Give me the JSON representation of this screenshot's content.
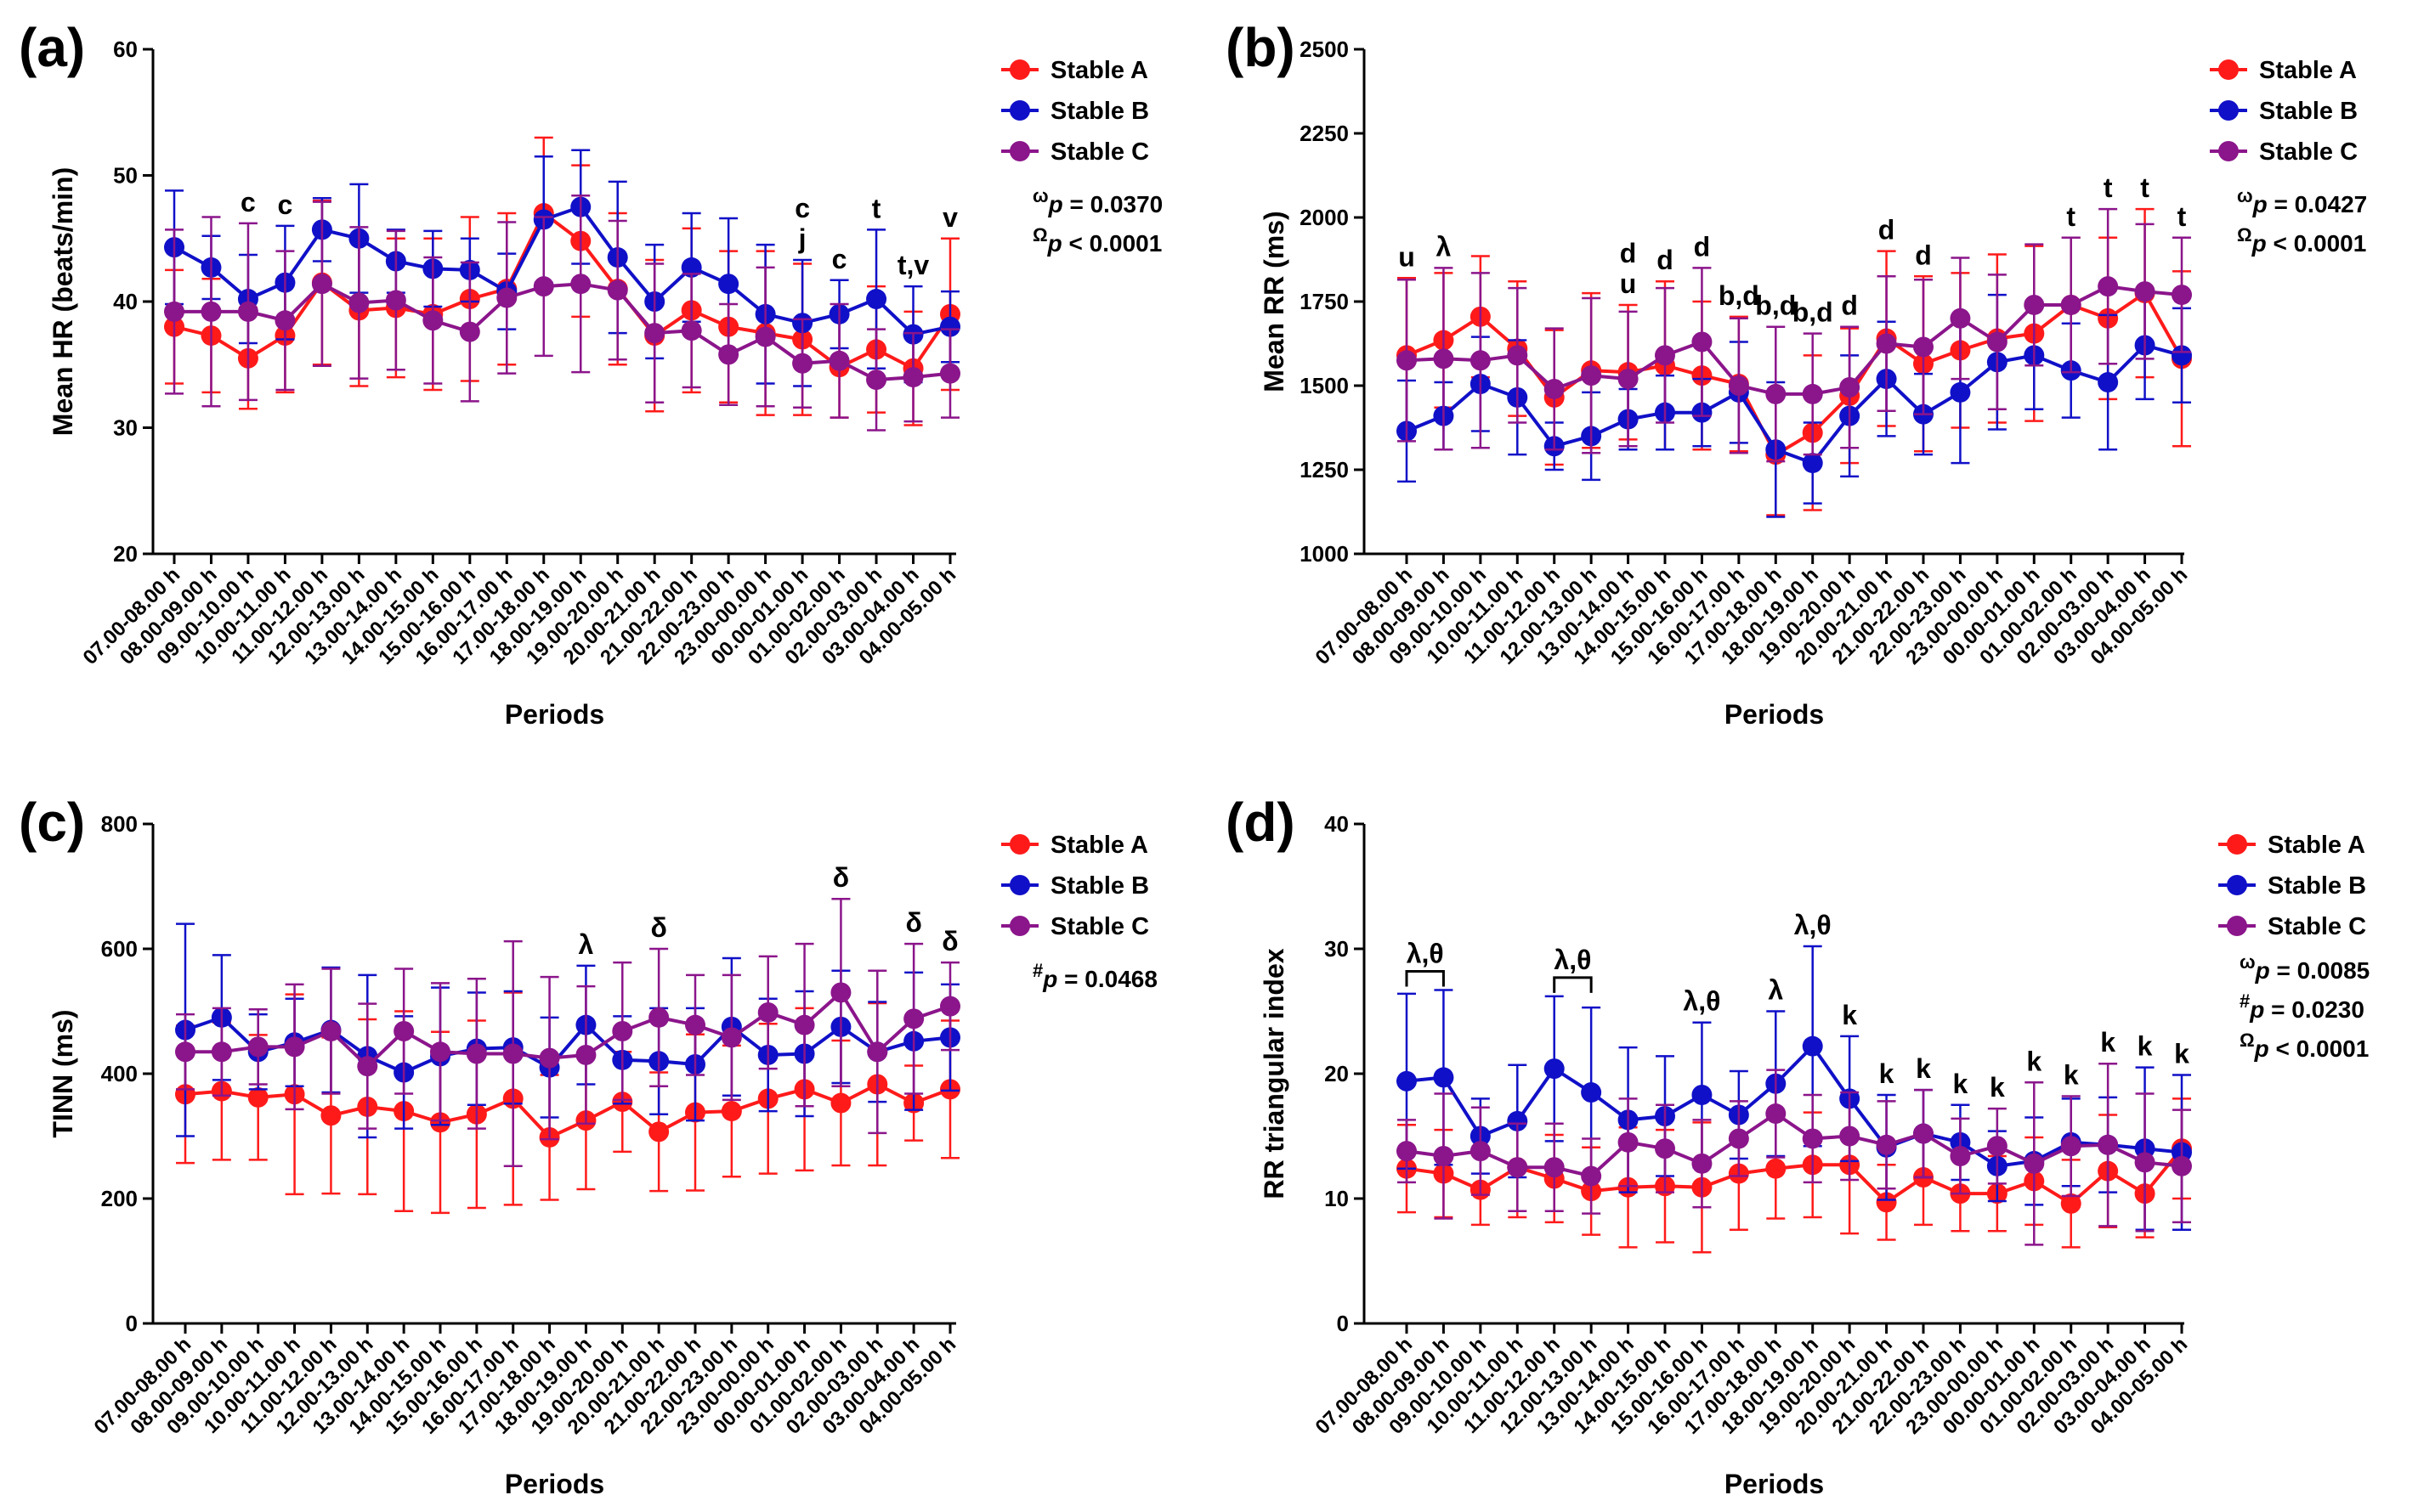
{
  "colors": {
    "A": "#ff1a1a",
    "B": "#1010c8",
    "C": "#8b158b"
  },
  "periods": [
    "07.00-08.00 h",
    "08.00-09.00 h",
    "09.00-10.00 h",
    "10.00-11.00 h",
    "11.00-12.00 h",
    "12.00-13.00 h",
    "13.00-14.00 h",
    "14.00-15.00 h",
    "15.00-16.00 h",
    "16.00-17.00 h",
    "17.00-18.00 h",
    "18.00-19.00 h",
    "19.00-20.00 h",
    "20.00-21.00 h",
    "21.00-22.00 h",
    "22.00-23.00 h",
    "23.00-00.00 h",
    "00.00-01.00 h",
    "01.00-02.00 h",
    "02.00-03.00 h",
    "03.00-04.00 h",
    "04.00-05.00 h"
  ],
  "chart_data": [
    {
      "type": "line",
      "panel": "(a)",
      "xlabel": "Periods",
      "ylabel": "Mean HR (beats/min)",
      "ylim": [
        20,
        60
      ],
      "yticks": [
        20,
        30,
        40,
        50,
        60
      ],
      "legend": [
        "Stable A",
        "Stable B",
        "Stable C"
      ],
      "stats": [
        {
          "sym": "ω",
          "text": "p = 0.0370"
        },
        {
          "sym": "Ω",
          "text": "p < 0.0001"
        }
      ],
      "series": [
        {
          "name": "Stable A",
          "values": [
            38.0,
            37.3,
            35.5,
            37.3,
            41.5,
            39.3,
            39.5,
            39.0,
            40.2,
            41.0,
            47.0,
            44.8,
            41.0,
            37.3,
            39.3,
            38.0,
            37.5,
            37.0,
            34.8,
            36.2,
            34.7,
            39.0
          ],
          "err": [
            4.5,
            4.5,
            4.0,
            4.5,
            6.5,
            6.0,
            5.5,
            6.0,
            6.5,
            6.0,
            6.0,
            6.0,
            6.0,
            6.0,
            6.5,
            6.0,
            6.5,
            6.0,
            4.0,
            5.0,
            4.5,
            6.0
          ]
        },
        {
          "name": "Stable B",
          "values": [
            44.3,
            42.7,
            40.2,
            41.5,
            45.7,
            45.0,
            43.2,
            42.6,
            42.5,
            40.8,
            46.5,
            47.5,
            43.5,
            40.0,
            42.7,
            41.4,
            39.0,
            38.3,
            39.0,
            40.2,
            37.4,
            38.0
          ],
          "err": [
            4.5,
            2.5,
            3.5,
            4.5,
            2.5,
            4.3,
            2.5,
            3.0,
            2.5,
            3.0,
            5.0,
            4.5,
            6.0,
            4.5,
            4.3,
            5.2,
            5.5,
            5.0,
            2.7,
            5.5,
            3.8,
            2.8
          ]
        },
        {
          "name": "Stable C",
          "values": [
            39.2,
            39.2,
            39.2,
            38.5,
            41.4,
            39.9,
            40.1,
            38.5,
            37.6,
            40.3,
            41.2,
            41.4,
            40.9,
            37.5,
            37.7,
            35.8,
            37.2,
            35.1,
            35.3,
            33.8,
            34.0,
            34.3
          ],
          "err": [
            6.5,
            7.5,
            7.0,
            5.5,
            6.5,
            6.0,
            5.5,
            5.0,
            5.5,
            6.0,
            5.5,
            7.0,
            5.5,
            5.5,
            4.5,
            4.0,
            5.5,
            3.5,
            4.5,
            4.0,
            3.5,
            3.5
          ]
        }
      ],
      "annotations": [
        {
          "idx": 2,
          "lines": [
            "c"
          ]
        },
        {
          "idx": 3,
          "lines": [
            "c"
          ]
        },
        {
          "idx": 17,
          "lines": [
            "c",
            "j"
          ]
        },
        {
          "idx": 18,
          "lines": [
            "c"
          ]
        },
        {
          "idx": 19,
          "lines": [
            "t"
          ]
        },
        {
          "idx": 20,
          "lines": [
            "t,v"
          ]
        },
        {
          "idx": 21,
          "lines": [
            "v"
          ]
        }
      ]
    },
    {
      "type": "line",
      "panel": "(b)",
      "xlabel": "Periods",
      "ylabel": "Mean RR (ms)",
      "ylim": [
        1000,
        2500
      ],
      "yticks": [
        1000,
        1250,
        1500,
        1750,
        2000,
        2250,
        2500
      ],
      "legend": [
        "Stable A",
        "Stable B",
        "Stable C"
      ],
      "stats": [
        {
          "sym": "ω",
          "text": "p = 0.0427"
        },
        {
          "sym": "Ω",
          "text": "p < 0.0001"
        }
      ],
      "series": [
        {
          "name": "Stable A",
          "values": [
            1590,
            1635,
            1705,
            1610,
            1465,
            1545,
            1540,
            1560,
            1530,
            1505,
            1295,
            1360,
            1470,
            1640,
            1565,
            1605,
            1640,
            1655,
            1740,
            1700,
            1775,
            1580
          ],
          "err": [
            230,
            200,
            180,
            200,
            200,
            230,
            200,
            250,
            220,
            200,
            180,
            230,
            200,
            260,
            260,
            230,
            250,
            260,
            200,
            240,
            250,
            260
          ]
        },
        {
          "name": "Stable B",
          "values": [
            1365,
            1410,
            1505,
            1465,
            1320,
            1350,
            1400,
            1420,
            1420,
            1480,
            1310,
            1270,
            1410,
            1520,
            1415,
            1480,
            1570,
            1590,
            1545,
            1510,
            1620,
            1590
          ],
          "err": [
            150,
            100,
            140,
            170,
            70,
            130,
            90,
            110,
            100,
            150,
            200,
            120,
            180,
            170,
            120,
            210,
            200,
            160,
            140,
            200,
            160,
            140
          ]
        },
        {
          "name": "Stable C",
          "values": [
            1575,
            1580,
            1575,
            1590,
            1490,
            1530,
            1520,
            1590,
            1630,
            1500,
            1475,
            1475,
            1495,
            1625,
            1615,
            1700,
            1630,
            1740,
            1740,
            1795,
            1780,
            1770
          ],
          "err": [
            240,
            270,
            260,
            200,
            180,
            230,
            200,
            200,
            220,
            200,
            200,
            180,
            180,
            200,
            200,
            180,
            200,
            180,
            200,
            230,
            200,
            170
          ]
        }
      ],
      "annotations": [
        {
          "idx": 0,
          "lines": [
            "u"
          ]
        },
        {
          "idx": 1,
          "lines": [
            "λ"
          ]
        },
        {
          "idx": 6,
          "lines": [
            "d",
            "u"
          ]
        },
        {
          "idx": 7,
          "lines": [
            "d"
          ]
        },
        {
          "idx": 8,
          "lines": [
            "d"
          ]
        },
        {
          "idx": 9,
          "lines": [
            "b,d"
          ]
        },
        {
          "idx": 10,
          "lines": [
            "b,d"
          ]
        },
        {
          "idx": 11,
          "lines": [
            "b,d"
          ]
        },
        {
          "idx": 12,
          "lines": [
            "d"
          ]
        },
        {
          "idx": 13,
          "lines": [
            "d"
          ]
        },
        {
          "idx": 14,
          "lines": [
            "d"
          ]
        },
        {
          "idx": 18,
          "lines": [
            "t"
          ]
        },
        {
          "idx": 19,
          "lines": [
            "t"
          ]
        },
        {
          "idx": 20,
          "lines": [
            "t"
          ]
        },
        {
          "idx": 21,
          "lines": [
            "t"
          ]
        }
      ]
    },
    {
      "type": "line",
      "panel": "(c)",
      "xlabel": "Periods",
      "ylabel": "TINN (ms)",
      "ylim": [
        0,
        800
      ],
      "yticks": [
        0,
        200,
        400,
        600,
        800
      ],
      "legend": [
        "Stable A",
        "Stable B",
        "Stable C"
      ],
      "stats": [
        {
          "sym": "#",
          "text": "p = 0.0468"
        }
      ],
      "series": [
        {
          "name": "Stable A",
          "values": [
            367,
            372,
            362,
            367,
            333,
            347,
            340,
            322,
            335,
            360,
            298,
            325,
            355,
            307,
            338,
            340,
            360,
            375,
            353,
            383,
            353,
            375
          ],
          "err": [
            110,
            110,
            100,
            160,
            125,
            140,
            160,
            145,
            150,
            170,
            100,
            110,
            80,
            95,
            125,
            105,
            120,
            130,
            100,
            130,
            60,
            110
          ]
        },
        {
          "name": "Stable B",
          "values": [
            470,
            490,
            435,
            450,
            470,
            428,
            402,
            428,
            440,
            442,
            410,
            478,
            422,
            420,
            415,
            475,
            430,
            432,
            475,
            435,
            452,
            458
          ],
          "err": [
            170,
            100,
            60,
            70,
            100,
            130,
            90,
            110,
            90,
            90,
            80,
            95,
            70,
            85,
            90,
            110,
            90,
            100,
            90,
            80,
            110,
            85
          ]
        },
        {
          "name": "Stable C",
          "values": [
            435,
            435,
            443,
            443,
            468,
            412,
            468,
            435,
            432,
            432,
            425,
            430,
            468,
            490,
            478,
            458,
            498,
            478,
            530,
            435,
            488,
            508
          ],
          "err": [
            60,
            70,
            60,
            100,
            100,
            100,
            100,
            110,
            120,
            180,
            130,
            110,
            110,
            110,
            80,
            100,
            90,
            130,
            150,
            130,
            120,
            70
          ]
        }
      ],
      "annotations": [
        {
          "idx": 11,
          "lines": [
            "λ"
          ]
        },
        {
          "idx": 13,
          "lines": [
            "δ"
          ]
        },
        {
          "idx": 18,
          "lines": [
            "δ"
          ]
        },
        {
          "idx": 20,
          "lines": [
            "δ"
          ]
        },
        {
          "idx": 21,
          "lines": [
            "δ"
          ]
        }
      ]
    },
    {
      "type": "line",
      "panel": "(d)",
      "xlabel": "Periods",
      "ylabel": "RR triangular index",
      "ylim": [
        0,
        40
      ],
      "yticks": [
        0,
        10,
        20,
        30,
        40
      ],
      "legend": [
        "Stable A",
        "Stable B",
        "Stable C"
      ],
      "stats": [
        {
          "sym": "ω",
          "text": "p = 0.0085"
        },
        {
          "sym": "#",
          "text": "p = 0.0230"
        },
        {
          "sym": "Ω",
          "text": "p < 0.0001"
        }
      ],
      "series": [
        {
          "name": "Stable A",
          "values": [
            12.4,
            12.0,
            10.7,
            12.5,
            11.6,
            10.6,
            10.9,
            11.0,
            10.9,
            12.0,
            12.4,
            12.7,
            12.7,
            9.7,
            11.7,
            10.4,
            10.4,
            11.4,
            9.6,
            12.2,
            10.4,
            14.0
          ],
          "err": [
            3.5,
            3.5,
            2.8,
            4.0,
            3.5,
            3.5,
            4.8,
            4.5,
            5.2,
            4.5,
            4.0,
            4.2,
            5.5,
            3.0,
            3.8,
            3.0,
            3.0,
            3.5,
            3.5,
            4.5,
            3.5,
            4.0
          ]
        },
        {
          "name": "Stable B",
          "values": [
            19.4,
            19.7,
            15.0,
            16.2,
            20.4,
            18.5,
            16.3,
            16.6,
            18.3,
            16.7,
            19.2,
            22.2,
            18.0,
            14.1,
            15.2,
            14.5,
            12.6,
            13.0,
            14.5,
            14.3,
            14.0,
            13.7
          ],
          "err": [
            7.0,
            7.0,
            3.0,
            4.5,
            5.8,
            6.8,
            5.8,
            4.8,
            5.8,
            3.5,
            5.8,
            8.0,
            5.0,
            4.2,
            3.5,
            3.0,
            2.8,
            3.5,
            3.5,
            3.8,
            6.5,
            6.2
          ]
        },
        {
          "name": "Stable C",
          "values": [
            13.8,
            13.4,
            13.8,
            12.5,
            12.5,
            11.8,
            14.5,
            14.0,
            12.8,
            14.8,
            16.8,
            14.8,
            15.0,
            14.3,
            15.2,
            13.4,
            14.2,
            12.8,
            14.2,
            14.3,
            12.9,
            12.6
          ],
          "err": [
            2.5,
            5.0,
            3.5,
            3.5,
            3.5,
            3.0,
            3.5,
            3.5,
            3.5,
            3.0,
            3.5,
            3.5,
            3.5,
            3.5,
            3.5,
            3.0,
            3.0,
            6.5,
            4.0,
            6.5,
            5.5,
            4.5
          ]
        }
      ],
      "annotations": [
        {
          "idx": 0.5,
          "lines": [
            "λ,θ"
          ],
          "bracket": [
            0,
            1
          ]
        },
        {
          "idx": 4.5,
          "lines": [
            "λ,θ"
          ],
          "bracket": [
            4,
            5
          ]
        },
        {
          "idx": 8,
          "lines": [
            "λ,θ"
          ]
        },
        {
          "idx": 10,
          "lines": [
            "λ"
          ]
        },
        {
          "idx": 11,
          "lines": [
            "λ,θ"
          ]
        },
        {
          "idx": 12,
          "lines": [
            "k"
          ]
        },
        {
          "idx": 13,
          "lines": [
            "k"
          ]
        },
        {
          "idx": 14,
          "lines": [
            "k"
          ]
        },
        {
          "idx": 15,
          "lines": [
            "k"
          ]
        },
        {
          "idx": 16,
          "lines": [
            "k"
          ]
        },
        {
          "idx": 17,
          "lines": [
            "k"
          ]
        },
        {
          "idx": 18,
          "lines": [
            "k"
          ]
        },
        {
          "idx": 19,
          "lines": [
            "k"
          ]
        },
        {
          "idx": 20,
          "lines": [
            "k"
          ]
        },
        {
          "idx": 21,
          "lines": [
            "k"
          ]
        }
      ]
    }
  ]
}
